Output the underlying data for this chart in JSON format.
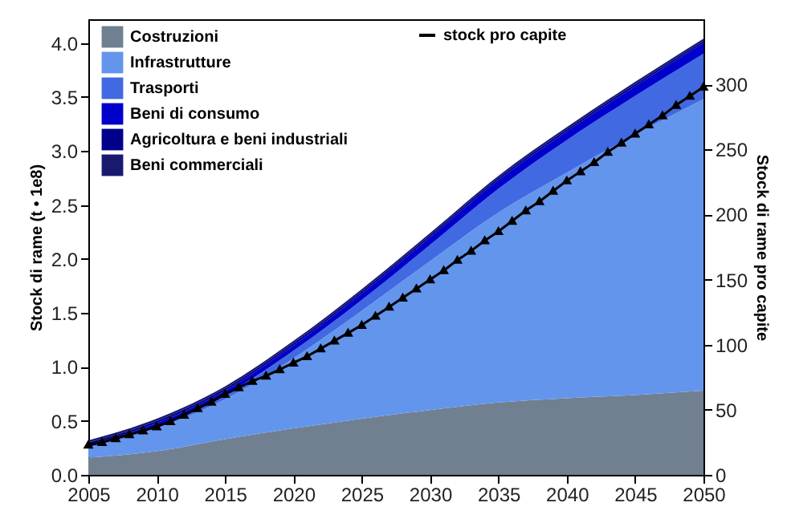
{
  "chart_data": {
    "type": "area",
    "stacked": true,
    "xlabel": null,
    "ylabel": "Stock di rame (t • 1e8)",
    "y2label": "Stock di rame pro capite",
    "x": [
      2005,
      2010,
      2015,
      2020,
      2025,
      2030,
      2035,
      2040,
      2045,
      2050
    ],
    "xlim": [
      2005,
      2050
    ],
    "xticks": [
      2005,
      2010,
      2015,
      2020,
      2025,
      2030,
      2035,
      2040,
      2045,
      2050
    ],
    "ylim": [
      0,
      4.22
    ],
    "yticks": [
      {
        "value": 0,
        "label": "0.0"
      },
      0.5,
      {
        "value": 1,
        "label": "1.0"
      },
      1.5,
      {
        "value": 2,
        "label": "2.0"
      },
      2.5,
      {
        "value": 3,
        "label": "3.0"
      },
      3.5,
      {
        "value": 4,
        "label": "4.0"
      }
    ],
    "y2lim": [
      0,
      350
    ],
    "y2ticks": [
      0,
      50,
      100,
      150,
      200,
      250,
      300
    ],
    "grid": false,
    "legend": "top left",
    "series": [
      {
        "name": "Costruzioni",
        "color": "#708090",
        "values": [
          0.16,
          0.22,
          0.33,
          0.43,
          0.52,
          0.6,
          0.67,
          0.71,
          0.74,
          0.78
        ]
      },
      {
        "name": "Infrastrutture",
        "color": "#6495ed",
        "values": [
          0.09,
          0.21,
          0.37,
          0.65,
          1.0,
          1.38,
          1.76,
          2.09,
          2.41,
          2.7
        ]
      },
      {
        "name": "Trasporti",
        "color": "#4169e1",
        "values": [
          0.01,
          0.02,
          0.04,
          0.07,
          0.1,
          0.15,
          0.22,
          0.3,
          0.36,
          0.42
        ]
      },
      {
        "name": "Beni di consumo",
        "color": "#0000cd",
        "values": [
          0.02,
          0.03,
          0.04,
          0.05,
          0.06,
          0.07,
          0.08,
          0.08,
          0.09,
          0.1
        ]
      },
      {
        "name": "Agricoltura e beni industriali",
        "color": "#00008b",
        "values": [
          0.02,
          0.02,
          0.02,
          0.02,
          0.02,
          0.02,
          0.02,
          0.02,
          0.02,
          0.02
        ]
      },
      {
        "name": "Beni commerciali",
        "color": "#191970",
        "values": [
          0.02,
          0.02,
          0.02,
          0.02,
          0.02,
          0.02,
          0.02,
          0.02,
          0.02,
          0.02
        ]
      },
      {
        "name": "stock pro capite",
        "type": "line",
        "axis": "y2",
        "color": "#000000",
        "marker": "triangle",
        "line_style": "solid",
        "x": [
          2005,
          2006,
          2007,
          2008,
          2009,
          2010,
          2011,
          2012,
          2013,
          2014,
          2015,
          2016,
          2017,
          2018,
          2019,
          2020,
          2021,
          2022,
          2023,
          2024,
          2025,
          2026,
          2027,
          2028,
          2029,
          2030,
          2031,
          2032,
          2033,
          2034,
          2035,
          2036,
          2037,
          2038,
          2039,
          2040,
          2041,
          2042,
          2043,
          2044,
          2045,
          2046,
          2047,
          2048,
          2049,
          2050
        ],
        "values": [
          23,
          25,
          28,
          31,
          34,
          37,
          41,
          46,
          51,
          56,
          62,
          67,
          72,
          76,
          81,
          86,
          91,
          97,
          103,
          109,
          115,
          122,
          129,
          136,
          143,
          150,
          157,
          165,
          172,
          180,
          187,
          195,
          203,
          210,
          218,
          226,
          233,
          240,
          248,
          255,
          262,
          269,
          276,
          284,
          291,
          298
        ]
      }
    ]
  }
}
